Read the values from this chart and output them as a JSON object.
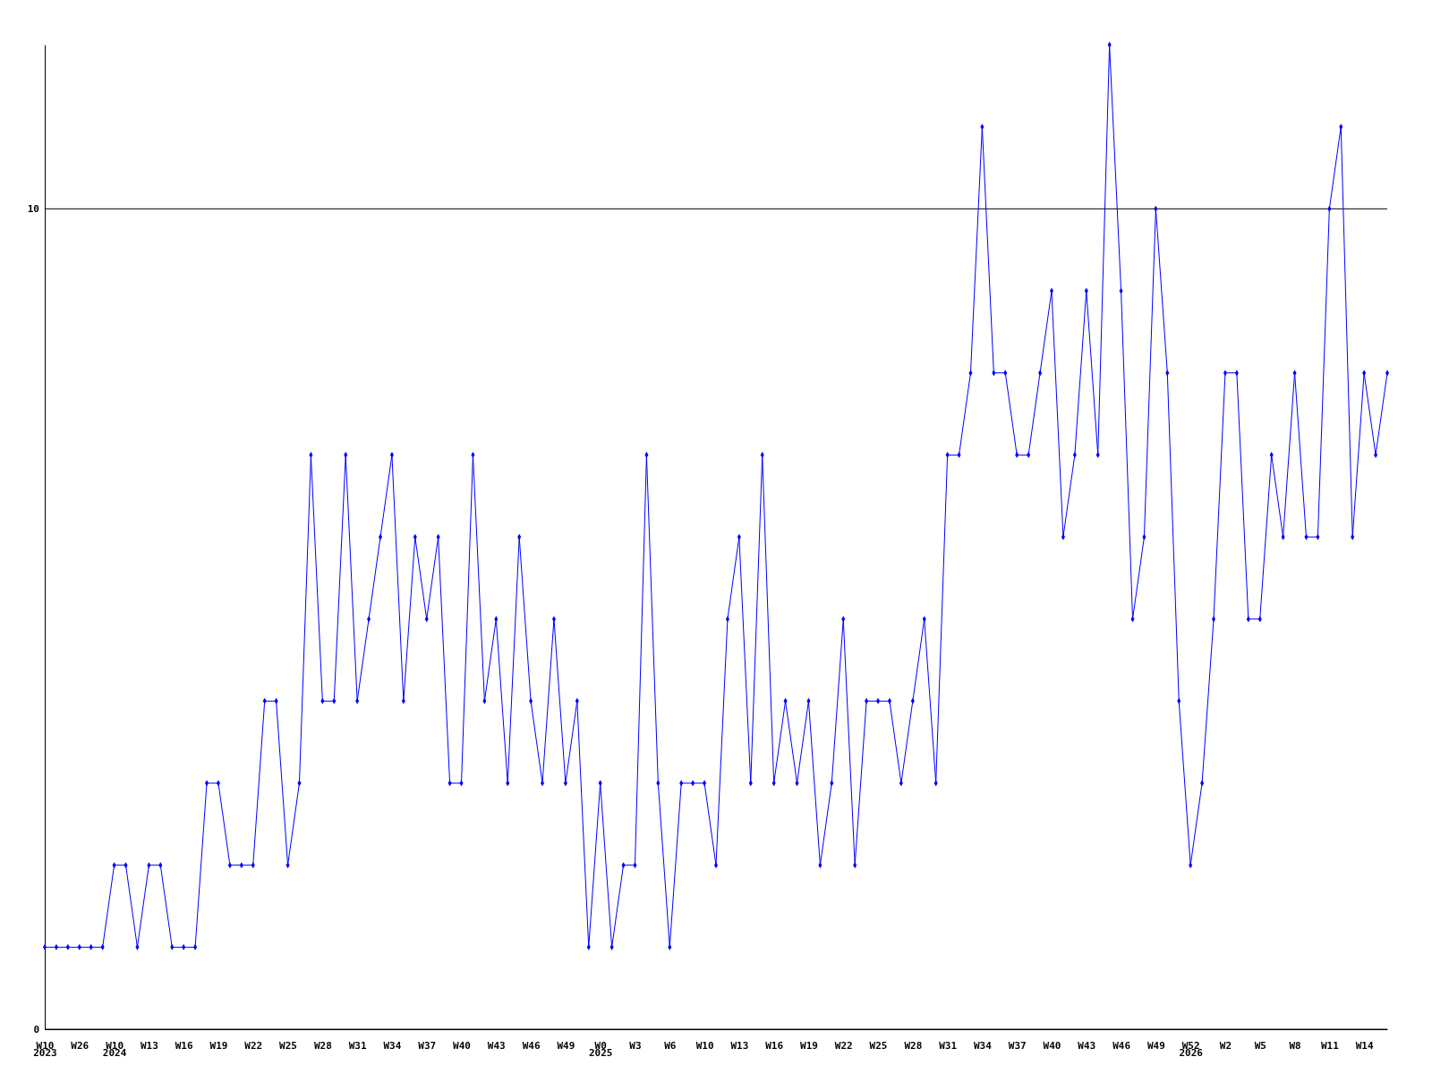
{
  "chart_data": {
    "type": "line",
    "categories": [
      "W10\n2023",
      null,
      null,
      "W26",
      null,
      null,
      "W10\n2024",
      null,
      null,
      "W13",
      null,
      null,
      "W16",
      null,
      null,
      "W19",
      null,
      null,
      "W22",
      null,
      null,
      "W25",
      null,
      null,
      "W28",
      null,
      null,
      "W31",
      null,
      null,
      "W34",
      null,
      null,
      "W37",
      null,
      null,
      "W40",
      null,
      null,
      "W43",
      null,
      null,
      "W46",
      null,
      null,
      "W49",
      null,
      null,
      "W0\n2025",
      null,
      null,
      "W3",
      null,
      null,
      "W6",
      null,
      null,
      "W10",
      null,
      null,
      "W13",
      null,
      null,
      "W16",
      null,
      null,
      "W19",
      null,
      null,
      "W22",
      null,
      null,
      "W25",
      null,
      null,
      "W28",
      null,
      null,
      "W31",
      null,
      null,
      "W34",
      null,
      null,
      "W37",
      null,
      null,
      "W40",
      null,
      null,
      "W43",
      null,
      null,
      "W46",
      null,
      null,
      "W49",
      null,
      null,
      "W52\n2026",
      null,
      null,
      "W2",
      null,
      null,
      "W5",
      null,
      null,
      "W8",
      null,
      null,
      "W11",
      null,
      null,
      "W14",
      null,
      null
    ],
    "series": [
      {
        "color": "#0000ff",
        "values": [
          1,
          1,
          1,
          1,
          1,
          1,
          2,
          2,
          1,
          2,
          2,
          1,
          1,
          1,
          3,
          3,
          2,
          2,
          2,
          4,
          4,
          2,
          3,
          7,
          4,
          4,
          7,
          4,
          5,
          6,
          7,
          4,
          6,
          5,
          6,
          3,
          3,
          7,
          4,
          5,
          3,
          6,
          4,
          3,
          5,
          3,
          4,
          1,
          3,
          1,
          2,
          2,
          7,
          3,
          1,
          3,
          3,
          3,
          2,
          5,
          6,
          3,
          7,
          3,
          4,
          3,
          4,
          2,
          3,
          5,
          2,
          4,
          4,
          4,
          3,
          4,
          5,
          3,
          7,
          7,
          8,
          11,
          8,
          8,
          7,
          7,
          8,
          9,
          6,
          7,
          9,
          7,
          12,
          9,
          5,
          6,
          10,
          8,
          4,
          2,
          3,
          5,
          8,
          8,
          5,
          5,
          7,
          6,
          8,
          6,
          6,
          10,
          11,
          6,
          8,
          7,
          8
        ]
      }
    ],
    "ylim": [
      0,
      12
    ],
    "yticks": [
      0,
      10
    ],
    "grid": "y",
    "marker": "diamond",
    "line_style": "solid"
  }
}
